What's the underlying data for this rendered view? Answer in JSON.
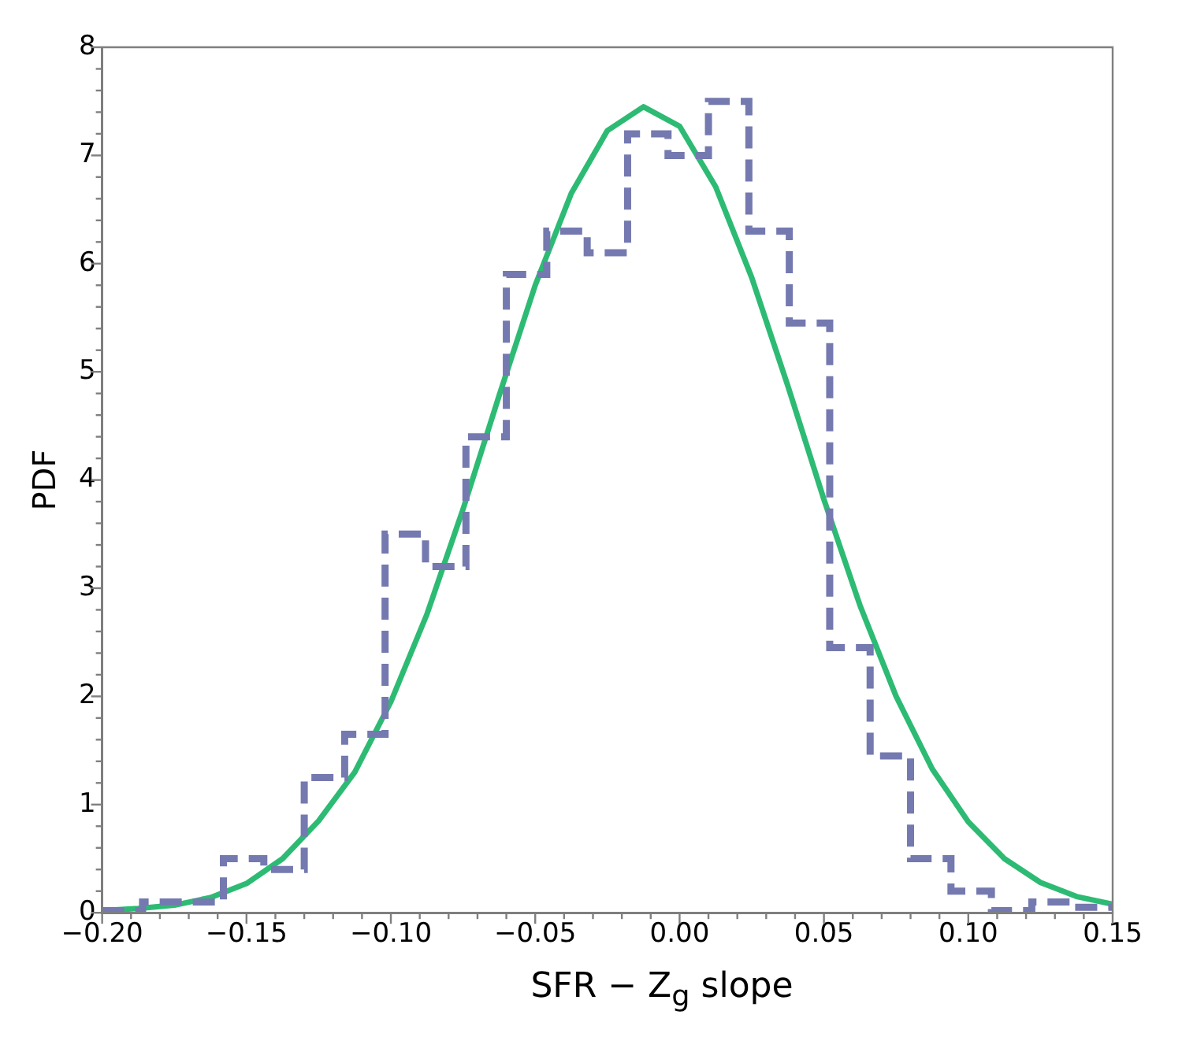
{
  "chart_data": {
    "type": "histogram",
    "xlabel": "SFR − Z$_{g}$ slope",
    "ylabel": "PDF",
    "xlim": [
      -0.2,
      0.15
    ],
    "xticks": [
      {
        "value": -0.2,
        "label": "−0.20"
      },
      {
        "value": -0.19,
        "label": null
      },
      {
        "value": -0.18,
        "label": null
      },
      {
        "value": -0.17,
        "label": null
      },
      {
        "value": -0.16,
        "label": null
      },
      {
        "value": -0.15,
        "label": "−0.15"
      },
      {
        "value": -0.14,
        "label": null
      },
      {
        "value": -0.13,
        "label": null
      },
      {
        "value": -0.12,
        "label": null
      },
      {
        "value": -0.11,
        "label": null
      },
      {
        "value": -0.1,
        "label": "−0.10"
      },
      {
        "value": -0.09,
        "label": null
      },
      {
        "value": -0.08,
        "label": null
      },
      {
        "value": -0.07,
        "label": null
      },
      {
        "value": -0.06,
        "label": null
      },
      {
        "value": -0.05,
        "label": "−0.05"
      },
      {
        "value": -0.04,
        "label": null
      },
      {
        "value": -0.03,
        "label": null
      },
      {
        "value": -0.02,
        "label": null
      },
      {
        "value": -0.01,
        "label": null
      },
      {
        "value": 0,
        "label": "0.00"
      },
      {
        "value": 0.01,
        "label": null
      },
      {
        "value": 0.02,
        "label": null
      },
      {
        "value": 0.03,
        "label": null
      },
      {
        "value": 0.04,
        "label": null
      },
      {
        "value": 0.05,
        "label": "0.05"
      },
      {
        "value": 0.06,
        "label": null
      },
      {
        "value": 0.07,
        "label": null
      },
      {
        "value": 0.08,
        "label": null
      },
      {
        "value": 0.09,
        "label": null
      },
      {
        "value": 0.1,
        "label": "0.10"
      },
      {
        "value": 0.11,
        "label": null
      },
      {
        "value": 0.12,
        "label": null
      },
      {
        "value": 0.13,
        "label": null
      },
      {
        "value": 0.14,
        "label": null
      },
      {
        "value": 0.15,
        "label": "0.15"
      }
    ],
    "ylim": [
      0,
      8
    ],
    "yticks": [
      0,
      {
        "value": 0.2,
        "label": null
      },
      {
        "value": 0.4,
        "label": null
      },
      {
        "value": 0.6,
        "label": null
      },
      {
        "value": 0.8,
        "label": null
      },
      1,
      {
        "value": 1.2,
        "label": null
      },
      {
        "value": 1.4,
        "label": null
      },
      {
        "value": 1.6,
        "label": null
      },
      {
        "value": 1.8,
        "label": null
      },
      2,
      {
        "value": 2.2,
        "label": null
      },
      {
        "value": 2.4,
        "label": null
      },
      {
        "value": 2.6,
        "label": null
      },
      {
        "value": 2.8,
        "label": null
      },
      3,
      {
        "value": 3.2,
        "label": null
      },
      {
        "value": 3.4,
        "label": null
      },
      {
        "value": 3.6,
        "label": null
      },
      {
        "value": 3.8,
        "label": null
      },
      4,
      {
        "value": 4.2,
        "label": null
      },
      {
        "value": 4.4,
        "label": null
      },
      {
        "value": 4.6,
        "label": null
      },
      {
        "value": 4.8,
        "label": null
      },
      5,
      {
        "value": 5.2,
        "label": null
      },
      {
        "value": 5.4,
        "label": null
      },
      {
        "value": 5.6,
        "label": null
      },
      {
        "value": 5.8,
        "label": null
      },
      6,
      {
        "value": 6.2,
        "label": null
      },
      {
        "value": 6.4,
        "label": null
      },
      {
        "value": 6.6,
        "label": null
      },
      {
        "value": 6.8,
        "label": null
      },
      7,
      {
        "value": 7.2,
        "label": null
      },
      {
        "value": 7.4,
        "label": null
      },
      {
        "value": 7.6,
        "label": null
      },
      {
        "value": 7.8,
        "label": null
      },
      8
    ],
    "grid": false,
    "legend": false,
    "series": [
      {
        "type": "histogram",
        "color": "#7479b0",
        "line_style": "dashed",
        "bins": [
          -0.2,
          -0.186,
          -0.172,
          -0.158,
          -0.144,
          -0.13,
          -0.116,
          -0.102,
          -0.088,
          -0.074,
          -0.06,
          -0.046,
          -0.032,
          -0.018,
          -0.004,
          0.01,
          0.024,
          0.038,
          0.052,
          0.066,
          0.08,
          0.094,
          0.108,
          0.122,
          0.136,
          0.15
        ],
        "values": [
          0.02,
          0.1,
          0.1,
          0.5,
          0.4,
          1.25,
          1.65,
          3.5,
          3.2,
          4.4,
          5.9,
          6.3,
          6.1,
          7.2,
          7.0,
          7.5,
          6.3,
          5.45,
          2.45,
          1.45,
          0.5,
          0.2,
          0.02,
          0.1,
          0.05
        ]
      },
      {
        "type": "line",
        "color": "#2dbb74",
        "line_style": "solid",
        "marker": "none",
        "x": [
          -0.2,
          -0.1875,
          -0.175,
          -0.1625,
          -0.15,
          -0.1375,
          -0.125,
          -0.1125,
          -0.1,
          -0.0875,
          -0.075,
          -0.0625,
          -0.05,
          -0.0375,
          -0.025,
          -0.0125,
          0,
          0.0125,
          0.025,
          0.0375,
          0.05,
          0.0625,
          0.075,
          0.0875,
          0.1,
          0.1125,
          0.125,
          0.1375,
          0.15
        ],
        "values": [
          0.02,
          0.04,
          0.07,
          0.14,
          0.27,
          0.5,
          0.85,
          1.3,
          1.95,
          2.76,
          3.73,
          4.78,
          5.8,
          6.65,
          7.23,
          7.45,
          7.27,
          6.71,
          5.87,
          4.87,
          3.82,
          2.84,
          2.0,
          1.33,
          0.84,
          0.5,
          0.28,
          0.15,
          0.08
        ]
      }
    ]
  }
}
